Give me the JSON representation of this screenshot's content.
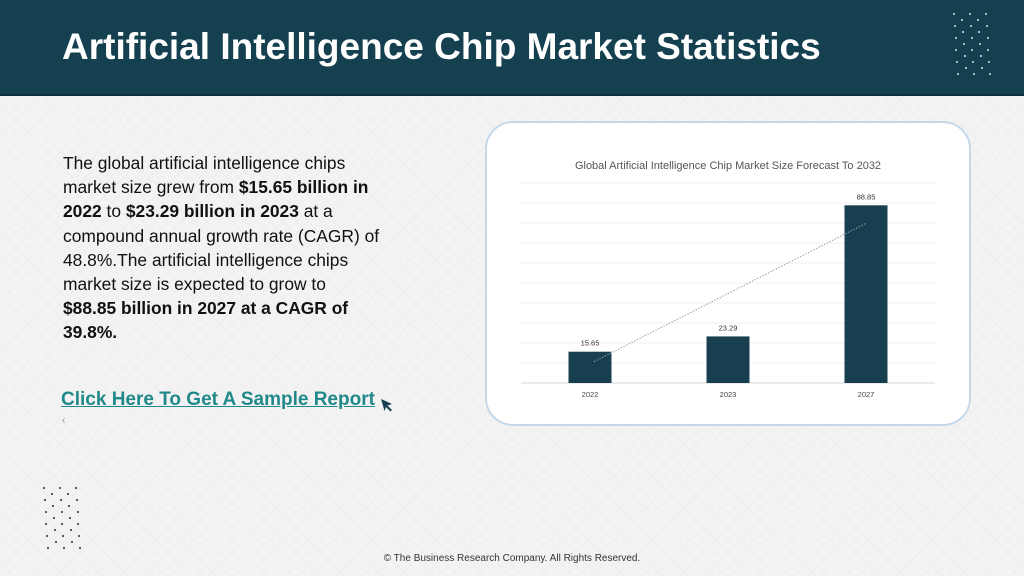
{
  "header": {
    "title": "Artificial Intelligence Chip Market Statistics"
  },
  "body": {
    "paragraph": [
      {
        "text": "The global artificial intelligence chips market size grew from ",
        "bold": false
      },
      {
        "text": "$15.65 billion in 2022",
        "bold": true
      },
      {
        "text": " to ",
        "bold": false
      },
      {
        "text": "$23.29 billion in 2023",
        "bold": true
      },
      {
        "text": " at a compound annual growth rate (CAGR) of 48.8%.The artificial intelligence chips market size is expected to grow to ",
        "bold": false
      },
      {
        "text": "$88.85 billion in 2027 at a CAGR of 39.8%.",
        "bold": true
      }
    ],
    "cta_label": "Click Here To Get A Sample Report",
    "cta_icon": "cursor-arrow-icon"
  },
  "footer": {
    "copyright": "© The Business Research Company. All Rights Reserved."
  },
  "colors": {
    "header_bg": "#15404f",
    "bar": "#173f4f",
    "link": "#22898a",
    "card_border": "#c5d8ea"
  },
  "chart_data": {
    "type": "bar",
    "title": "Global Artificial Intelligence Chip Market Size Forecast To 2032",
    "categories": [
      "2022",
      "2023",
      "2027"
    ],
    "values": [
      15.65,
      23.29,
      88.85
    ],
    "data_labels": [
      "15.65",
      "23.29",
      "88.85"
    ],
    "ylim": [
      0,
      100
    ],
    "grid": true,
    "trendline": true,
    "xlabel": "",
    "ylabel": ""
  }
}
